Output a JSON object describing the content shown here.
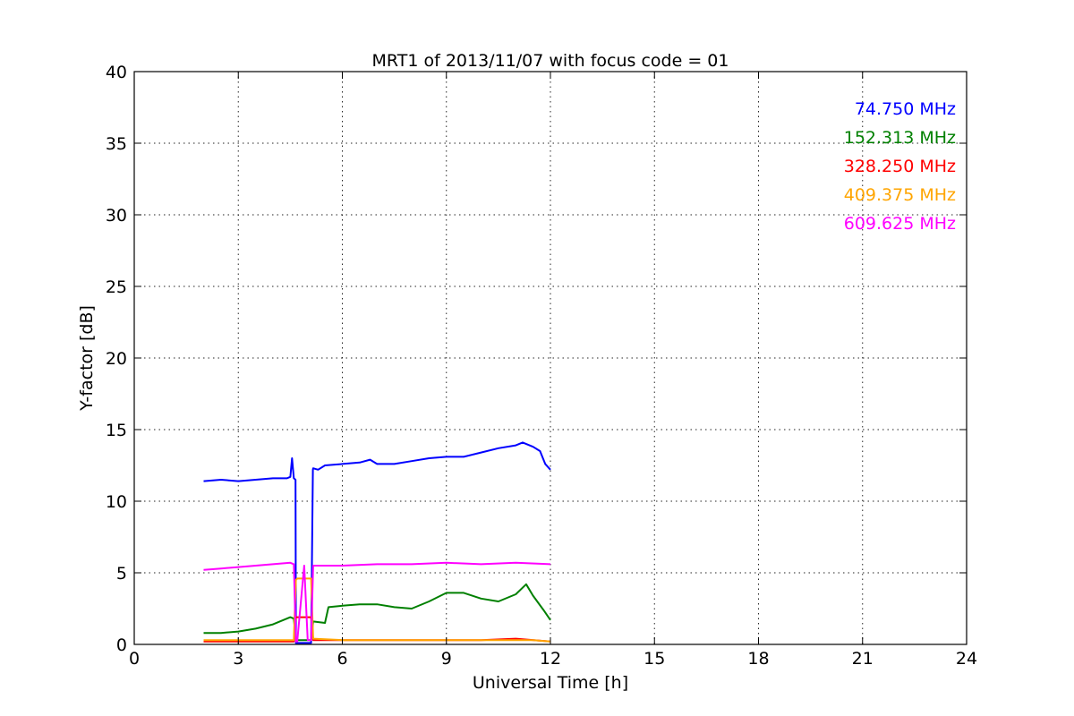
{
  "chart_data": {
    "type": "line",
    "title": "MRT1 of 2013/11/07 with focus code = 01",
    "xlabel": "Universal Time [h]",
    "ylabel": "Y-factor [dB]",
    "xlim": [
      0,
      24
    ],
    "ylim": [
      0,
      40
    ],
    "xticks": [
      0,
      3,
      6,
      9,
      12,
      15,
      18,
      21,
      24
    ],
    "yticks": [
      0,
      5,
      10,
      15,
      20,
      25,
      30,
      35,
      40
    ],
    "grid": true,
    "legend_position": "top-right",
    "series": [
      {
        "name": "74.750 MHz",
        "color": "#0000ff",
        "x": [
          2.0,
          2.5,
          3.0,
          3.5,
          4.0,
          4.4,
          4.5,
          4.55,
          4.6,
          4.65,
          4.66,
          4.7,
          5.1,
          5.15,
          5.16,
          5.3,
          5.5,
          6.0,
          6.5,
          6.8,
          7.0,
          7.5,
          8.0,
          8.5,
          9.0,
          9.5,
          10.0,
          10.5,
          11.0,
          11.2,
          11.5,
          11.7,
          11.85,
          12.0
        ],
        "y": [
          11.4,
          11.5,
          11.4,
          11.5,
          11.6,
          11.6,
          11.7,
          13.0,
          11.6,
          11.5,
          0.1,
          0.1,
          0.1,
          12.2,
          12.3,
          12.2,
          12.5,
          12.6,
          12.7,
          12.9,
          12.6,
          12.6,
          12.8,
          13.0,
          13.1,
          13.1,
          13.4,
          13.7,
          13.9,
          14.1,
          13.8,
          13.5,
          12.6,
          12.2
        ]
      },
      {
        "name": "152.313 MHz",
        "color": "#008000",
        "x": [
          2.0,
          2.5,
          3.0,
          3.5,
          4.0,
          4.5,
          4.6,
          4.66,
          4.7,
          5.1,
          5.16,
          5.5,
          5.6,
          6.0,
          6.5,
          7.0,
          7.5,
          8.0,
          8.5,
          9.0,
          9.5,
          10.0,
          10.5,
          11.0,
          11.3,
          11.5,
          11.8,
          12.0
        ],
        "y": [
          0.8,
          0.8,
          0.9,
          1.1,
          1.4,
          1.9,
          1.8,
          0.3,
          0.3,
          0.3,
          1.6,
          1.5,
          2.6,
          2.7,
          2.8,
          2.8,
          2.6,
          2.5,
          3.0,
          3.6,
          3.6,
          3.2,
          3.0,
          3.5,
          4.2,
          3.4,
          2.4,
          1.7
        ]
      },
      {
        "name": "328.250 MHz",
        "color": "#ff0000",
        "x": [
          2.0,
          4.0,
          4.6,
          4.66,
          4.7,
          5.1,
          5.16,
          6.0,
          8.0,
          10.0,
          11.0,
          12.0
        ],
        "y": [
          0.2,
          0.2,
          0.2,
          1.9,
          1.9,
          1.9,
          0.3,
          0.3,
          0.3,
          0.3,
          0.4,
          0.2
        ]
      },
      {
        "name": "409.375 MHz",
        "color": "#ffa500",
        "x": [
          2.0,
          3.0,
          4.0,
          4.6,
          4.66,
          4.7,
          5.1,
          5.16,
          6.0,
          8.0,
          10.0,
          11.0,
          11.5,
          12.0
        ],
        "y": [
          0.3,
          0.3,
          0.3,
          0.3,
          4.5,
          4.6,
          4.6,
          0.4,
          0.3,
          0.3,
          0.3,
          0.3,
          0.3,
          0.2
        ]
      },
      {
        "name": "609.625 MHz",
        "color": "#ff00ff",
        "x": [
          2.0,
          2.5,
          3.0,
          3.5,
          4.0,
          4.5,
          4.6,
          4.66,
          4.7,
          4.9,
          5.0,
          5.1,
          5.16,
          5.5,
          6.0,
          7.0,
          8.0,
          9.0,
          10.0,
          11.0,
          12.0
        ],
        "y": [
          5.2,
          5.3,
          5.4,
          5.5,
          5.6,
          5.7,
          5.6,
          0.2,
          0.2,
          5.5,
          0.3,
          0.3,
          5.5,
          5.5,
          5.5,
          5.6,
          5.6,
          5.7,
          5.6,
          5.7,
          5.6
        ]
      }
    ]
  }
}
